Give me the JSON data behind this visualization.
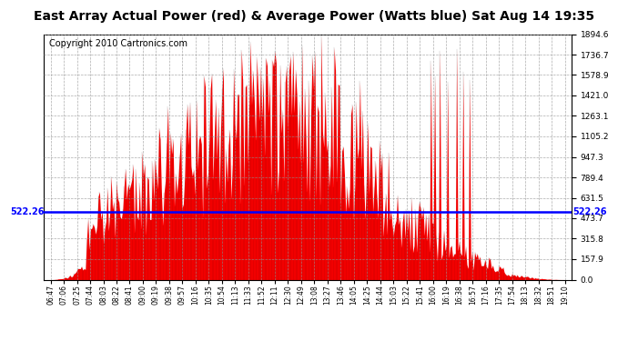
{
  "title": "East Array Actual Power (red) & Average Power (Watts blue) Sat Aug 14 19:35",
  "copyright": "Copyright 2010 Cartronics.com",
  "avg_power": 522.26,
  "y_max": 1894.6,
  "y_min": 0.0,
  "y_ticks": [
    0.0,
    157.9,
    315.8,
    473.7,
    631.5,
    789.4,
    947.3,
    1105.2,
    1263.1,
    1421.0,
    1578.9,
    1736.7,
    1894.6
  ],
  "x_labels": [
    "06:47",
    "07:06",
    "07:25",
    "07:44",
    "08:03",
    "08:22",
    "08:41",
    "09:00",
    "09:19",
    "09:38",
    "09:57",
    "10:16",
    "10:35",
    "10:54",
    "11:13",
    "11:33",
    "11:52",
    "12:11",
    "12:30",
    "12:49",
    "13:08",
    "13:27",
    "13:46",
    "14:05",
    "14:25",
    "14:44",
    "15:03",
    "15:22",
    "15:41",
    "16:00",
    "16:19",
    "16:38",
    "16:57",
    "17:16",
    "17:35",
    "17:54",
    "18:13",
    "18:32",
    "18:51",
    "19:10"
  ],
  "bar_color": "#FF0000",
  "line_color": "#0000FF",
  "background_color": "#FFFFFF",
  "grid_color": "#999999",
  "title_fontsize": 10,
  "copyright_fontsize": 7,
  "avg_label_fontsize": 7
}
